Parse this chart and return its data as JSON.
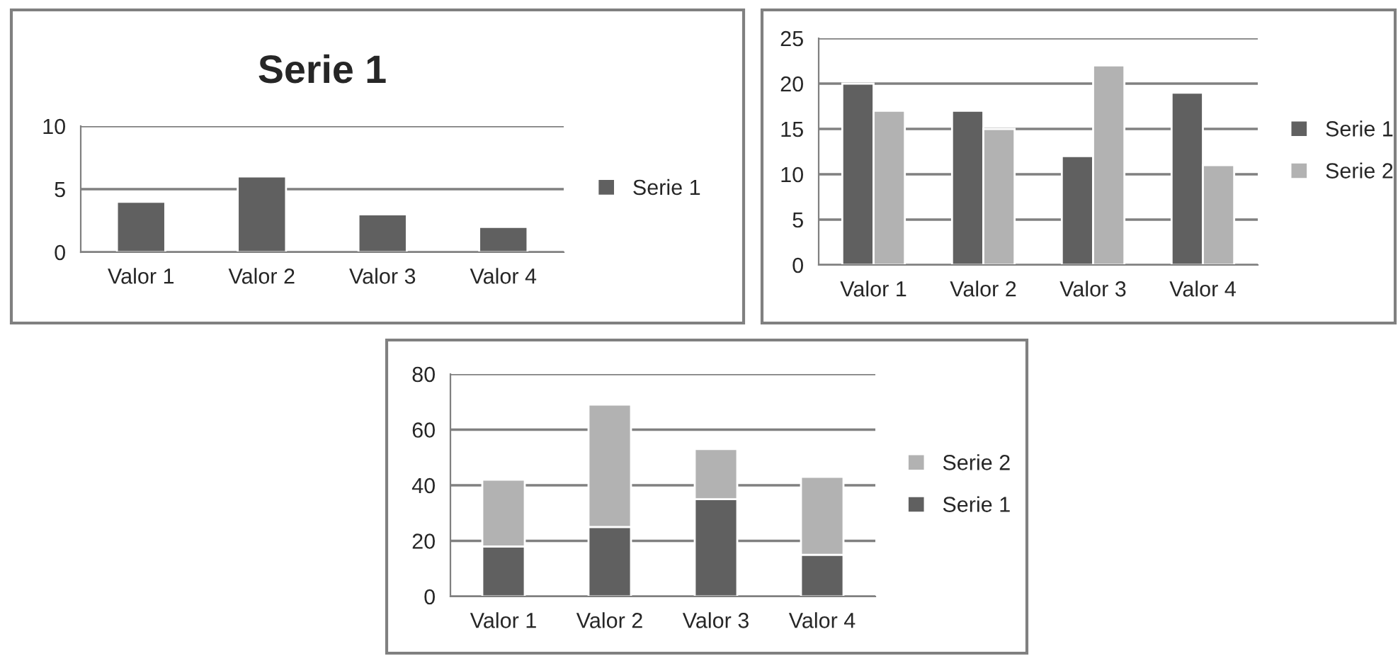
{
  "chart_data": [
    {
      "type": "bar",
      "title": "Serie 1",
      "categories": [
        "Valor 1",
        "Valor 2",
        "Valor 3",
        "Valor 4"
      ],
      "ylim": [
        0,
        10
      ],
      "yticks": [
        0,
        5,
        10
      ],
      "grid": "y",
      "legend": "right",
      "series": [
        {
          "name": "Serie 1",
          "color": "#606060",
          "values": [
            4,
            6,
            3,
            2
          ]
        }
      ]
    },
    {
      "type": "bar",
      "categories": [
        "Valor 1",
        "Valor 2",
        "Valor 3",
        "Valor 4"
      ],
      "ylim": [
        0,
        25
      ],
      "yticks": [
        0,
        5,
        10,
        15,
        20,
        25
      ],
      "grid": "y",
      "legend": "right",
      "series": [
        {
          "name": "Serie 1",
          "color": "#606060",
          "values": [
            20,
            17,
            12,
            19
          ]
        },
        {
          "name": "Serie 2",
          "color": "#b2b2b2",
          "values": [
            17,
            15,
            22,
            11
          ]
        }
      ]
    },
    {
      "type": "bar",
      "stacked": true,
      "categories": [
        "Valor 1",
        "Valor 2",
        "Valor 3",
        "Valor 4"
      ],
      "ylim": [
        0,
        80
      ],
      "yticks": [
        0,
        20,
        40,
        60,
        80
      ],
      "grid": "y",
      "legend": "right",
      "series": [
        {
          "name": "Serie 1",
          "color": "#606060",
          "values": [
            18,
            25,
            35,
            15
          ]
        },
        {
          "name": "Serie 2",
          "color": "#b2b2b2",
          "values": [
            24,
            44,
            18,
            28
          ]
        }
      ]
    }
  ]
}
